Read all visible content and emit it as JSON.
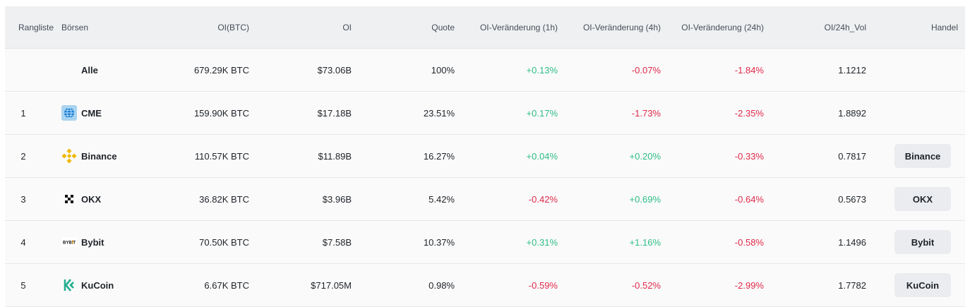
{
  "headers": {
    "rank": "Rangliste",
    "exchanges": "Börsen",
    "oi_btc": "OI(BTC)",
    "oi": "OI",
    "quote": "Quote",
    "change_1h": "OI-Veränderung (1h)",
    "change_4h": "OI-Veränderung (4h)",
    "change_24h": "OI-Veränderung (24h)",
    "oi_vol": "OI/24h_Vol",
    "trade": "Handel"
  },
  "total": {
    "name": "Alle",
    "oi_btc": "679.29K BTC",
    "oi": "$73.06B",
    "quote": "100%",
    "change_1h": "+0.13%",
    "change_4h": "-0.07%",
    "change_24h": "-1.84%",
    "oi_vol": "1.1212"
  },
  "rows": [
    {
      "rank": "1",
      "name": "CME",
      "icon": "cme-globe-icon",
      "oi_btc": "159.90K BTC",
      "oi": "$17.18B",
      "quote": "23.51%",
      "change_1h": "+0.17%",
      "change_4h": "-1.73%",
      "change_24h": "-2.35%",
      "oi_vol": "1.8892",
      "trade": ""
    },
    {
      "rank": "2",
      "name": "Binance",
      "icon": "binance-logo-icon",
      "oi_btc": "110.57K BTC",
      "oi": "$11.89B",
      "quote": "16.27%",
      "change_1h": "+0.04%",
      "change_4h": "+0.20%",
      "change_24h": "-0.33%",
      "oi_vol": "0.7817",
      "trade": "Binance"
    },
    {
      "rank": "3",
      "name": "OKX",
      "icon": "okx-logo-icon",
      "oi_btc": "36.82K BTC",
      "oi": "$3.96B",
      "quote": "5.42%",
      "change_1h": "-0.42%",
      "change_4h": "+0.69%",
      "change_24h": "-0.64%",
      "oi_vol": "0.5673",
      "trade": "OKX"
    },
    {
      "rank": "4",
      "name": "Bybit",
      "icon": "bybit-logo-icon",
      "icon_text": "BYBIT",
      "oi_btc": "70.50K BTC",
      "oi": "$7.58B",
      "quote": "10.37%",
      "change_1h": "+0.31%",
      "change_4h": "+1.16%",
      "change_24h": "-0.58%",
      "oi_vol": "1.1496",
      "trade": "Bybit"
    },
    {
      "rank": "5",
      "name": "KuCoin",
      "icon": "kucoin-logo-icon",
      "oi_btc": "6.67K BTC",
      "oi": "$717.05M",
      "quote": "0.98%",
      "change_1h": "-0.59%",
      "change_4h": "-0.52%",
      "change_24h": "-2.99%",
      "oi_vol": "1.7782",
      "trade": "KuCoin"
    }
  ],
  "colors": {
    "positive": "#2ebd85",
    "negative": "#e0294a",
    "header_bg": "#eef0f2",
    "button_bg": "#eaecef"
  }
}
